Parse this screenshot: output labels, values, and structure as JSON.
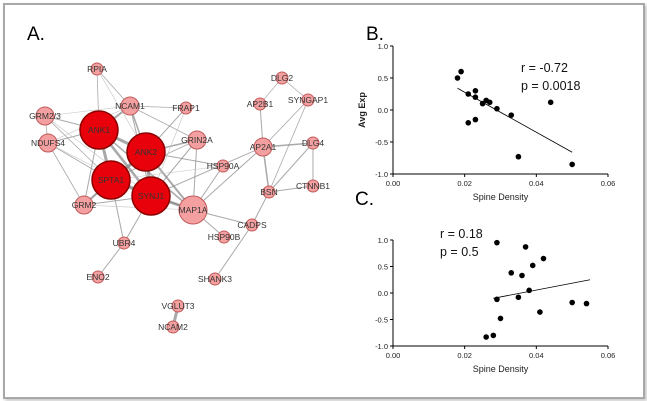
{
  "panels": {
    "a": "A.",
    "b": "B.",
    "c": "C."
  },
  "network": {
    "nodes": [
      {
        "id": "RPIA",
        "size": "s"
      },
      {
        "id": "NCAM1",
        "size": "m"
      },
      {
        "id": "GRM2/3",
        "size": "m"
      },
      {
        "id": "ANK1",
        "size": "xl"
      },
      {
        "id": "ANK2",
        "size": "xl"
      },
      {
        "id": "FRAP1",
        "size": "s"
      },
      {
        "id": "GRIN2A",
        "size": "m"
      },
      {
        "id": "NDUFS4",
        "size": "m"
      },
      {
        "id": "SPTA1",
        "size": "xl"
      },
      {
        "id": "SYNJ1",
        "size": "xl"
      },
      {
        "id": "GRM2",
        "size": "m"
      },
      {
        "id": "HSP90A",
        "size": "s"
      },
      {
        "id": "MAP1A",
        "size": "l"
      },
      {
        "id": "DLG2",
        "size": "s"
      },
      {
        "id": "AP2B1",
        "size": "s"
      },
      {
        "id": "SYNGAP1",
        "size": "s"
      },
      {
        "id": "AP2A1",
        "size": "m"
      },
      {
        "id": "DLG4",
        "size": "s"
      },
      {
        "id": "BSN",
        "size": "s"
      },
      {
        "id": "CTNNB1",
        "size": "s"
      },
      {
        "id": "CADPS",
        "size": "s"
      },
      {
        "id": "HSP90B",
        "size": "s"
      },
      {
        "id": "UBR4",
        "size": "s"
      },
      {
        "id": "ENO2",
        "size": "s"
      },
      {
        "id": "SHANK3",
        "size": "s"
      },
      {
        "id": "VGLUT3",
        "size": "s"
      },
      {
        "id": "NCAM2",
        "size": "s"
      }
    ],
    "colors": {
      "hub": "#e8000b",
      "hub_stroke": "#8a0000",
      "node": "#f4a0a0",
      "node_stroke": "#c25a5a",
      "edge": "#8c8c8c"
    }
  },
  "chart_data": [
    {
      "type": "scatter",
      "panel": "B.",
      "xlabel": "Spine Density",
      "ylabel": "Avg Exp",
      "xlim": [
        0.0,
        0.06
      ],
      "ylim": [
        -1.0,
        1.0
      ],
      "xticks": [
        "0.00",
        "0.02",
        "0.04",
        "0.06"
      ],
      "yticks": [
        "1.0",
        "0.5",
        "0.0",
        "-0.5",
        "-1.0"
      ],
      "annotations": [
        "r = -0.72",
        "p = 0.0018"
      ],
      "points": [
        {
          "x": 0.018,
          "y": 0.5
        },
        {
          "x": 0.019,
          "y": 0.6
        },
        {
          "x": 0.021,
          "y": 0.25
        },
        {
          "x": 0.023,
          "y": 0.3
        },
        {
          "x": 0.023,
          "y": 0.2
        },
        {
          "x": 0.025,
          "y": 0.1
        },
        {
          "x": 0.026,
          "y": 0.15
        },
        {
          "x": 0.027,
          "y": 0.12
        },
        {
          "x": 0.021,
          "y": -0.2
        },
        {
          "x": 0.023,
          "y": -0.15
        },
        {
          "x": 0.029,
          "y": 0.02
        },
        {
          "x": 0.033,
          "y": -0.08
        },
        {
          "x": 0.044,
          "y": 0.12
        },
        {
          "x": 0.035,
          "y": -0.73
        },
        {
          "x": 0.05,
          "y": -0.85
        }
      ],
      "trendline": {
        "x": [
          0.018,
          0.05
        ],
        "y": [
          0.34,
          -0.66
        ]
      }
    },
    {
      "type": "scatter",
      "panel": "C.",
      "xlabel": "Spine Density",
      "ylabel": "",
      "xlim": [
        0.0,
        0.06
      ],
      "ylim": [
        -1.0,
        1.0
      ],
      "xticks": [
        "0.00",
        "0.02",
        "0.04",
        "0.06"
      ],
      "yticks": [
        "1.0",
        "0.5",
        "0.0",
        "-0.5",
        "-1.0"
      ],
      "annotations": [
        "r = 0.18",
        "p = 0.5"
      ],
      "points": [
        {
          "x": 0.029,
          "y": 0.95
        },
        {
          "x": 0.037,
          "y": 0.87
        },
        {
          "x": 0.042,
          "y": 0.65
        },
        {
          "x": 0.039,
          "y": 0.52
        },
        {
          "x": 0.033,
          "y": 0.38
        },
        {
          "x": 0.036,
          "y": 0.33
        },
        {
          "x": 0.038,
          "y": 0.05
        },
        {
          "x": 0.029,
          "y": -0.12
        },
        {
          "x": 0.035,
          "y": -0.08
        },
        {
          "x": 0.05,
          "y": -0.18
        },
        {
          "x": 0.054,
          "y": -0.2
        },
        {
          "x": 0.03,
          "y": -0.48
        },
        {
          "x": 0.041,
          "y": -0.36
        },
        {
          "x": 0.026,
          "y": -0.83
        },
        {
          "x": 0.028,
          "y": -0.8
        }
      ],
      "trendline": {
        "x": [
          0.028,
          0.055
        ],
        "y": [
          -0.1,
          0.25
        ]
      }
    }
  ]
}
